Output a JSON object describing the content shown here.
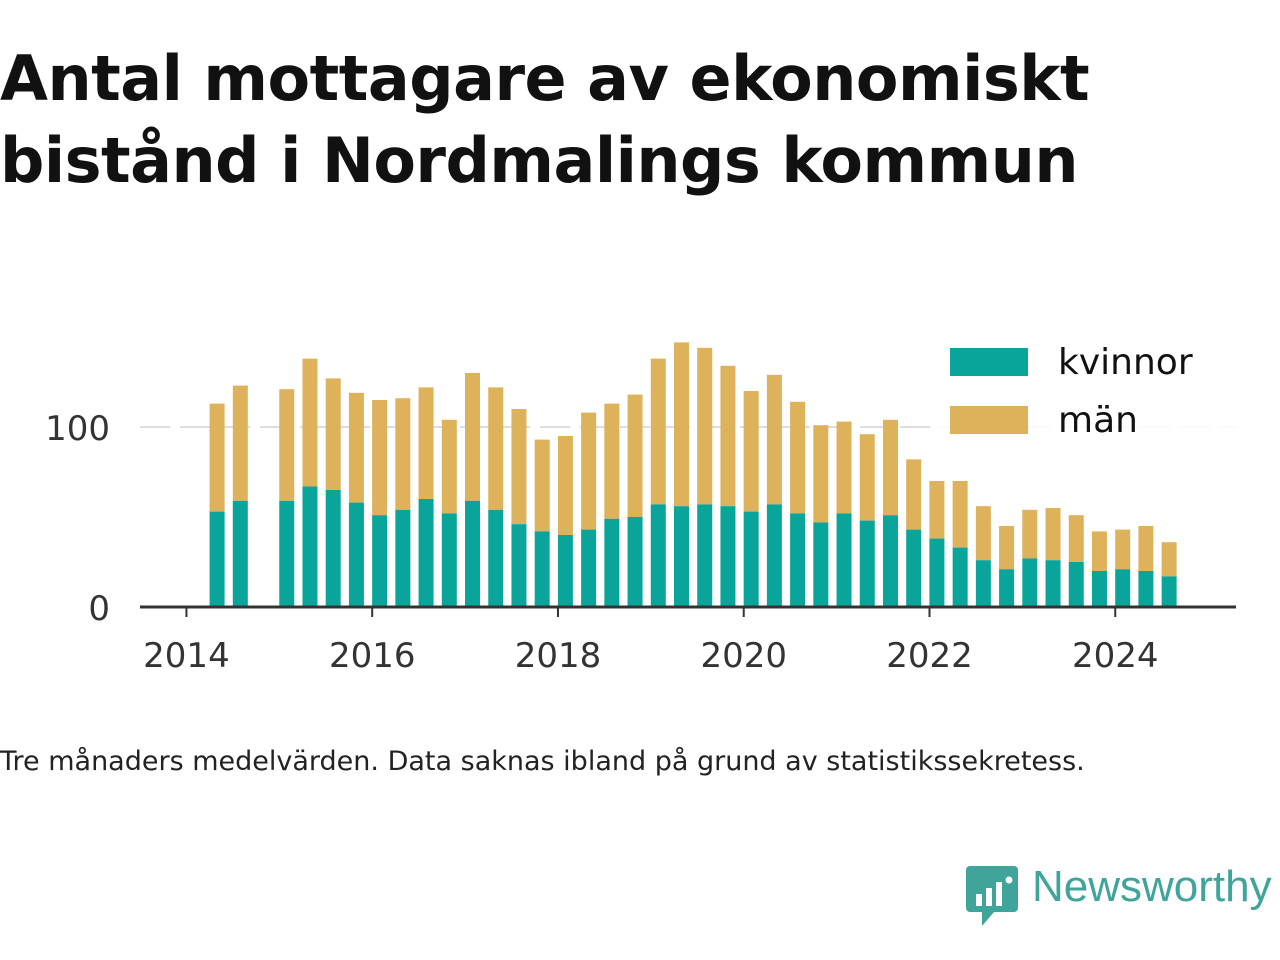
{
  "title_lines": [
    "Antal mottagare av ekonomiskt",
    "bistånd i Nordmalings kommun"
  ],
  "caption": "Tre månaders medelvärden. Data saknas ibland på grund av statistikssekretess.",
  "brand": {
    "name": "Newsworthy",
    "icon": "newsworthy-logo-icon",
    "color": "#3fa49a"
  },
  "colors": {
    "kvinnor": "#0aa59a",
    "man": "#deb15b",
    "grid": "#dddddd",
    "axis": "#333333"
  },
  "chart_data": {
    "type": "bar",
    "stacked": true,
    "title": "Antal mottagare av ekonomiskt bistånd i Nordmalings kommun",
    "xlabel": "",
    "ylabel": "",
    "ylim": [
      0,
      150
    ],
    "xlim": [
      2013.5,
      2025.3
    ],
    "y_ticks": [
      0,
      100
    ],
    "x_ticks": [
      2014,
      2016,
      2018,
      2020,
      2022,
      2024
    ],
    "grid": "horizontal",
    "legend_position": "top-right",
    "x": [
      2014.33,
      2014.58,
      2015.08,
      2015.33,
      2015.58,
      2015.83,
      2016.08,
      2016.33,
      2016.58,
      2016.83,
      2017.08,
      2017.33,
      2017.58,
      2017.83,
      2018.08,
      2018.33,
      2018.58,
      2018.83,
      2019.08,
      2019.33,
      2019.58,
      2019.83,
      2020.08,
      2020.33,
      2020.58,
      2020.83,
      2021.08,
      2021.33,
      2021.58,
      2021.83,
      2022.08,
      2022.33,
      2022.58,
      2022.83,
      2023.08,
      2023.33,
      2023.58,
      2023.83,
      2024.08,
      2024.33,
      2024.58
    ],
    "series": [
      {
        "name": "kvinnor",
        "values": [
          53,
          59,
          59,
          67,
          65,
          58,
          51,
          54,
          60,
          52,
          59,
          54,
          46,
          42,
          40,
          43,
          49,
          50,
          57,
          56,
          57,
          56,
          53,
          57,
          52,
          47,
          52,
          48,
          51,
          43,
          38,
          33,
          26,
          21,
          27,
          26,
          25,
          20,
          21,
          20,
          17
        ]
      },
      {
        "name": "män",
        "values": [
          60,
          64,
          62,
          71,
          62,
          61,
          64,
          62,
          62,
          52,
          71,
          68,
          64,
          51,
          55,
          65,
          64,
          68,
          81,
          91,
          87,
          78,
          67,
          72,
          62,
          54,
          51,
          48,
          53,
          39,
          32,
          37,
          30,
          24,
          27,
          29,
          26,
          22,
          22,
          25,
          19
        ]
      }
    ]
  }
}
